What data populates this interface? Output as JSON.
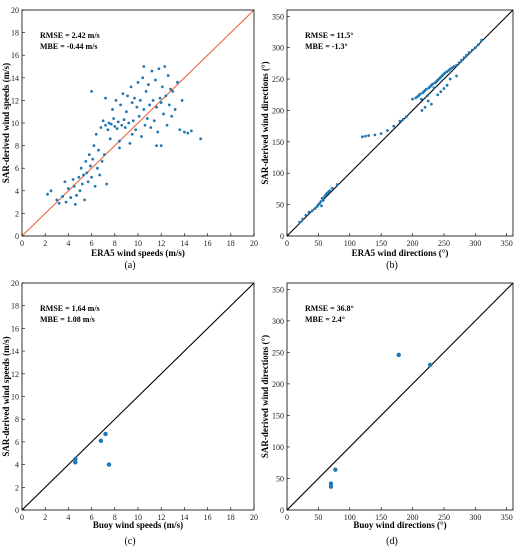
{
  "chart_data": [
    {
      "type": "scatter",
      "panel": "a",
      "caption": "(a)",
      "xlabel": "ERA5 wind speeds (m/s)",
      "ylabel": "SAR-derived wind speeds (m/s)",
      "xlim": [
        0,
        20
      ],
      "ylim": [
        0,
        20
      ],
      "xticks": [
        0,
        2,
        4,
        6,
        8,
        10,
        12,
        14,
        16,
        18,
        20
      ],
      "yticks": [
        0,
        2,
        4,
        6,
        8,
        10,
        12,
        14,
        16,
        18,
        20
      ],
      "stats": [
        "RMSE = 2.42 m/s",
        "MBE = -0.44 m/s"
      ],
      "identity_line_color": "#E8643C",
      "marker_color": "#1F77B4",
      "grid": false,
      "points": [
        [
          2.2,
          3.7
        ],
        [
          2.5,
          4.0
        ],
        [
          3.0,
          3.2
        ],
        [
          3.2,
          2.9
        ],
        [
          3.5,
          3.5
        ],
        [
          3.7,
          4.8
        ],
        [
          3.8,
          3.0
        ],
        [
          4.0,
          4.2
        ],
        [
          4.2,
          3.4
        ],
        [
          4.4,
          5.0
        ],
        [
          4.5,
          4.4
        ],
        [
          4.6,
          2.8
        ],
        [
          4.7,
          3.6
        ],
        [
          4.9,
          5.2
        ],
        [
          5.0,
          4.0
        ],
        [
          5.1,
          6.0
        ],
        [
          5.2,
          4.6
        ],
        [
          5.3,
          5.4
        ],
        [
          5.4,
          3.2
        ],
        [
          5.5,
          6.6
        ],
        [
          5.6,
          5.6
        ],
        [
          5.7,
          4.8
        ],
        [
          5.8,
          7.2
        ],
        [
          5.9,
          6.2
        ],
        [
          6.0,
          5.2
        ],
        [
          6.1,
          6.8
        ],
        [
          6.2,
          8.0
        ],
        [
          6.3,
          4.4
        ],
        [
          6.4,
          9.0
        ],
        [
          6.5,
          6.0
        ],
        [
          6.6,
          7.6
        ],
        [
          6.7,
          5.4
        ],
        [
          6.8,
          9.6
        ],
        [
          6.9,
          6.6
        ],
        [
          7.0,
          10.2
        ],
        [
          7.1,
          7.2
        ],
        [
          7.2,
          9.8
        ],
        [
          7.3,
          4.6
        ],
        [
          7.4,
          9.4
        ],
        [
          7.5,
          10.0
        ],
        [
          7.6,
          8.6
        ],
        [
          7.7,
          9.9
        ],
        [
          7.8,
          11.2
        ],
        [
          7.9,
          10.4
        ],
        [
          8.0,
          9.7
        ],
        [
          8.1,
          12.0
        ],
        [
          8.2,
          9.5
        ],
        [
          8.3,
          10.1
        ],
        [
          8.4,
          7.8
        ],
        [
          8.5,
          11.6
        ],
        [
          8.6,
          9.8
        ],
        [
          8.7,
          12.6
        ],
        [
          8.8,
          10.3
        ],
        [
          8.9,
          9.6
        ],
        [
          9.0,
          11.0
        ],
        [
          9.1,
          12.4
        ],
        [
          9.2,
          10.0
        ],
        [
          9.3,
          8.2
        ],
        [
          9.4,
          13.2
        ],
        [
          9.5,
          11.8
        ],
        [
          9.6,
          10.2
        ],
        [
          9.7,
          12.2
        ],
        [
          9.8,
          9.4
        ],
        [
          9.9,
          11.4
        ],
        [
          10.0,
          13.6
        ],
        [
          10.1,
          10.6
        ],
        [
          10.2,
          12.0
        ],
        [
          10.3,
          8.8
        ],
        [
          10.4,
          14.0
        ],
        [
          10.5,
          11.2
        ],
        [
          10.6,
          9.8
        ],
        [
          10.7,
          12.8
        ],
        [
          10.8,
          10.4
        ],
        [
          10.9,
          13.4
        ],
        [
          11.0,
          11.6
        ],
        [
          11.1,
          9.6
        ],
        [
          11.2,
          14.6
        ],
        [
          11.3,
          12.0
        ],
        [
          11.4,
          10.2
        ],
        [
          11.5,
          13.8
        ],
        [
          11.6,
          11.4
        ],
        [
          11.7,
          9.2
        ],
        [
          11.8,
          14.8
        ],
        [
          11.9,
          12.2
        ],
        [
          12.0,
          11.8
        ],
        [
          12.1,
          13.2
        ],
        [
          12.2,
          10.8
        ],
        [
          12.3,
          15.0
        ],
        [
          12.4,
          12.4
        ],
        [
          12.5,
          9.8
        ],
        [
          12.6,
          14.2
        ],
        [
          12.7,
          11.6
        ],
        [
          12.8,
          13.0
        ],
        [
          12.9,
          10.6
        ],
        [
          13.0,
          12.8
        ],
        [
          13.2,
          11.2
        ],
        [
          13.4,
          13.6
        ],
        [
          13.6,
          9.4
        ],
        [
          13.8,
          12.0
        ],
        [
          14.0,
          9.2
        ],
        [
          14.3,
          9.1
        ],
        [
          6.0,
          12.8
        ],
        [
          7.2,
          12.2
        ],
        [
          10.5,
          15.0
        ],
        [
          11.6,
          8.0
        ],
        [
          12.0,
          8.0
        ],
        [
          8.4,
          8.4
        ],
        [
          9.5,
          9.0
        ],
        [
          15.4,
          8.6
        ],
        [
          14.6,
          9.3
        ]
      ]
    },
    {
      "type": "scatter",
      "panel": "b",
      "caption": "(b)",
      "xlabel": "ERA5 wind directions (°)",
      "ylabel": "SAR-derived wind directions (°)",
      "xlim": [
        0,
        360
      ],
      "ylim": [
        0,
        360
      ],
      "xticks": [
        0,
        50,
        100,
        150,
        200,
        250,
        300,
        350
      ],
      "yticks": [
        0,
        50,
        100,
        150,
        200,
        250,
        300,
        350
      ],
      "stats": [
        "RMSE = 11.5°",
        "MBE = -1.3°"
      ],
      "identity_line_color": "#000000",
      "marker_color": "#1F77B4",
      "grid": false,
      "points": [
        [
          20,
          22
        ],
        [
          25,
          27
        ],
        [
          30,
          33
        ],
        [
          35,
          38
        ],
        [
          40,
          40
        ],
        [
          45,
          44
        ],
        [
          48,
          47
        ],
        [
          50,
          50
        ],
        [
          52,
          52
        ],
        [
          54,
          55
        ],
        [
          55,
          48
        ],
        [
          56,
          60
        ],
        [
          58,
          57
        ],
        [
          60,
          63
        ],
        [
          62,
          66
        ],
        [
          64,
          68
        ],
        [
          66,
          70
        ],
        [
          68,
          72
        ],
        [
          72,
          76
        ],
        [
          80,
          82
        ],
        [
          120,
          158
        ],
        [
          125,
          159
        ],
        [
          130,
          160
        ],
        [
          140,
          161
        ],
        [
          150,
          163
        ],
        [
          160,
          168
        ],
        [
          170,
          175
        ],
        [
          180,
          183
        ],
        [
          185,
          186
        ],
        [
          190,
          190
        ],
        [
          200,
          218
        ],
        [
          205,
          220
        ],
        [
          208,
          222
        ],
        [
          210,
          224
        ],
        [
          212,
          226
        ],
        [
          214,
          218
        ],
        [
          216,
          228
        ],
        [
          218,
          230
        ],
        [
          220,
          232
        ],
        [
          222,
          234
        ],
        [
          224,
          224
        ],
        [
          226,
          236
        ],
        [
          228,
          238
        ],
        [
          230,
          240
        ],
        [
          232,
          242
        ],
        [
          234,
          236
        ],
        [
          236,
          244
        ],
        [
          238,
          246
        ],
        [
          240,
          248
        ],
        [
          242,
          250
        ],
        [
          244,
          252
        ],
        [
          246,
          254
        ],
        [
          248,
          256
        ],
        [
          250,
          258
        ],
        [
          252,
          260
        ],
        [
          255,
          262
        ],
        [
          258,
          264
        ],
        [
          260,
          266
        ],
        [
          263,
          268
        ],
        [
          266,
          270
        ],
        [
          270,
          272
        ],
        [
          274,
          276
        ],
        [
          278,
          280
        ],
        [
          282,
          284
        ],
        [
          286,
          288
        ],
        [
          290,
          292
        ],
        [
          295,
          296
        ],
        [
          300,
          300
        ],
        [
          305,
          305
        ],
        [
          310,
          312
        ],
        [
          215,
          200
        ],
        [
          220,
          205
        ],
        [
          225,
          215
        ],
        [
          230,
          210
        ],
        [
          240,
          225
        ],
        [
          245,
          230
        ],
        [
          250,
          235
        ],
        [
          255,
          240
        ],
        [
          260,
          250
        ],
        [
          270,
          255
        ]
      ]
    },
    {
      "type": "scatter",
      "panel": "c",
      "caption": "(c)",
      "xlabel": "Buoy wind speeds (m/s)",
      "ylabel": "SAR-derived wind speeds (m/s)",
      "xlim": [
        0,
        20
      ],
      "ylim": [
        0,
        20
      ],
      "xticks": [
        0,
        2,
        4,
        6,
        8,
        10,
        12,
        14,
        16,
        18,
        20
      ],
      "yticks": [
        0,
        2,
        4,
        6,
        8,
        10,
        12,
        14,
        16,
        18,
        20
      ],
      "stats": [
        "RMSE = 1.64 m/s",
        "MBE = 1.08 m/s"
      ],
      "identity_line_color": "#000000",
      "marker_color": "#1F77B4",
      "grid": false,
      "points": [
        [
          4.6,
          4.2
        ],
        [
          4.6,
          4.5
        ],
        [
          6.8,
          6.1
        ],
        [
          7.2,
          6.7
        ],
        [
          7.5,
          4.0
        ]
      ]
    },
    {
      "type": "scatter",
      "panel": "d",
      "caption": "(d)",
      "xlabel": "Buoy wind directions (°)",
      "ylabel": "SAR-derived wind directions (°)",
      "xlim": [
        0,
        360
      ],
      "ylim": [
        0,
        360
      ],
      "xticks": [
        0,
        50,
        100,
        150,
        200,
        250,
        300,
        350
      ],
      "yticks": [
        0,
        50,
        100,
        150,
        200,
        250,
        300,
        350
      ],
      "stats": [
        "RMSE = 36.8°",
        "MBE = 2.4°"
      ],
      "identity_line_color": "#000000",
      "marker_color": "#1F77B4",
      "grid": false,
      "points": [
        [
          70,
          37
        ],
        [
          70,
          42
        ],
        [
          77,
          64
        ],
        [
          178,
          246
        ],
        [
          228,
          230
        ]
      ]
    }
  ]
}
